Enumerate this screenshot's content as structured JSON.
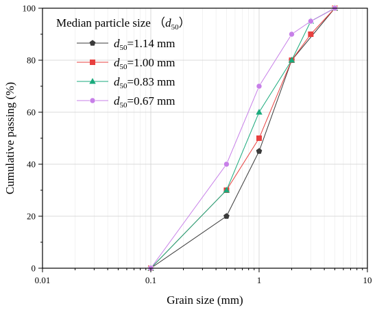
{
  "chart_data": {
    "type": "line",
    "x_scale": "log",
    "xlim": [
      0.01,
      10
    ],
    "ylim": [
      0,
      100
    ],
    "xticks": [
      0.01,
      0.1,
      1,
      10
    ],
    "xtick_labels": [
      "0.01",
      "0.1",
      "1",
      "10"
    ],
    "yticks": [
      0,
      20,
      40,
      60,
      80,
      100
    ],
    "ytick_labels": [
      "0",
      "20",
      "40",
      "60",
      "80",
      "100"
    ],
    "xlabel": "Grain size (mm)",
    "ylabel": "Cumulative passing (%)",
    "grid": true,
    "legend_placement": "top-left",
    "legend_title": "Median particle size （d50）",
    "legend_title_parts": {
      "text": "Median particle size （",
      "var": "d",
      "sub": "50",
      "close": "）"
    },
    "series": [
      {
        "name": "d50=1.14 mm",
        "label_var": "d",
        "label_sub": "50",
        "label_value": "=1.14 mm",
        "color": "#3a3a3a",
        "marker": "pentagon",
        "x": [
          0.1,
          0.5,
          1,
          2,
          5
        ],
        "y": [
          0,
          20,
          45,
          80,
          100
        ]
      },
      {
        "name": "d50=1.00 mm",
        "label_var": "d",
        "label_sub": "50",
        "label_value": "=1.00 mm",
        "color": "#e8403f",
        "marker": "square",
        "x": [
          0.1,
          0.5,
          1,
          2,
          3,
          5
        ],
        "y": [
          0,
          30,
          50,
          80,
          90,
          100
        ]
      },
      {
        "name": "d50=0.83 mm",
        "label_var": "d",
        "label_sub": "50",
        "label_value": "=0.83 mm",
        "color": "#1aaa7c",
        "marker": "triangle",
        "x": [
          0.1,
          0.5,
          1,
          2,
          3,
          5
        ],
        "y": [
          0,
          30,
          60,
          80,
          95,
          100
        ]
      },
      {
        "name": "d50=0.67 mm",
        "label_var": "d",
        "label_sub": "50",
        "label_value": "=0.67 mm",
        "color": "#c77fe8",
        "marker": "circle",
        "x": [
          0.1,
          0.5,
          1,
          2,
          3,
          5
        ],
        "y": [
          0,
          40,
          70,
          90,
          95,
          100
        ]
      }
    ]
  }
}
